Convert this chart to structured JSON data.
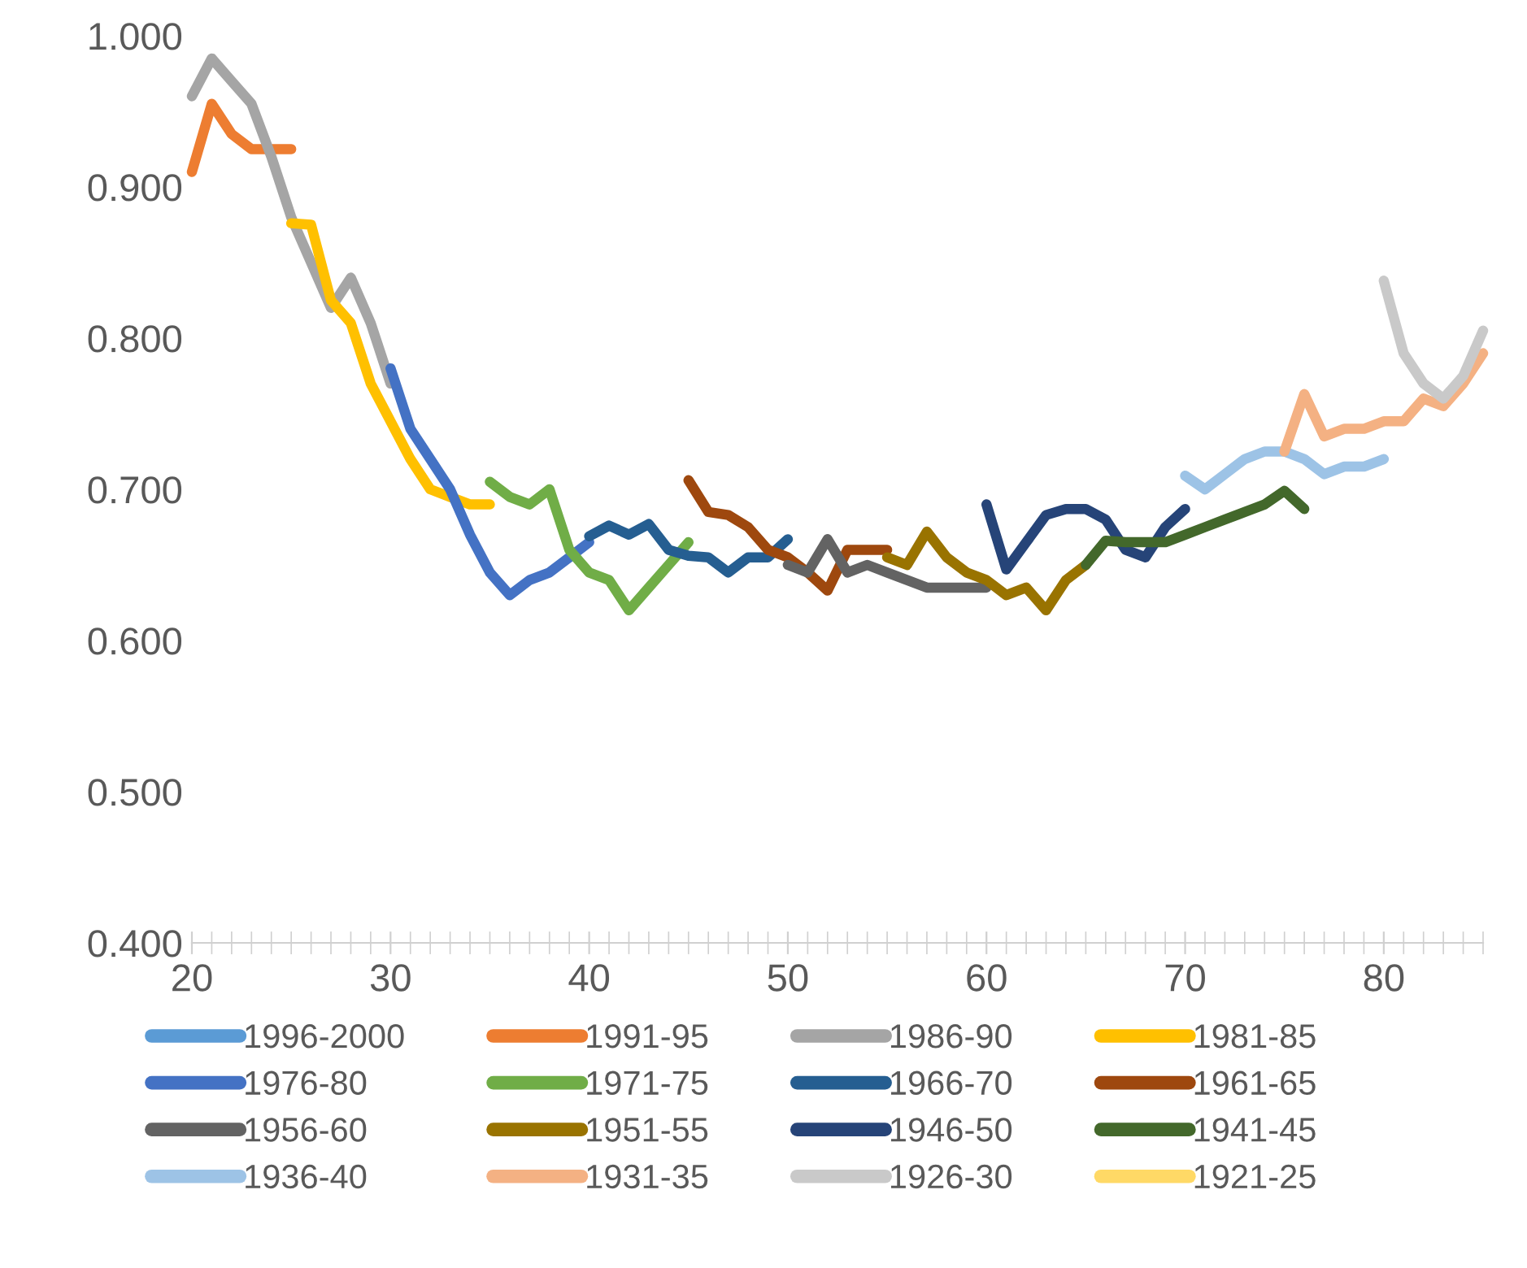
{
  "chart_data": {
    "type": "line",
    "xlim": [
      20,
      85
    ],
    "xticks": [
      20,
      30,
      40,
      50,
      60,
      70,
      80
    ],
    "ylim": [
      0.4,
      1.0
    ],
    "yticks": [
      {
        "value": 0.4,
        "label": "0.400"
      },
      {
        "value": 0.5,
        "label": "0.500"
      },
      {
        "value": 0.6,
        "label": "0.600"
      },
      {
        "value": 0.7,
        "label": "0.700"
      },
      {
        "value": 0.8,
        "label": "0.800"
      },
      {
        "value": 0.9,
        "label": "0.900"
      },
      {
        "value": 1.0,
        "label": "1.000"
      }
    ],
    "grid": false,
    "legend": "bottom",
    "line_style": "solid",
    "marker": "none",
    "series": [
      {
        "name": "1996-2000",
        "color": "#5b9bd5"
      },
      {
        "name": "1991-95",
        "color": "#ed7d31",
        "x": [
          20,
          21,
          22,
          23,
          24,
          25
        ],
        "values": [
          0.91,
          0.955,
          0.935,
          0.925,
          0.925,
          0.925
        ]
      },
      {
        "name": "1986-90",
        "color": "#a5a5a5",
        "x": [
          20,
          21,
          22,
          23,
          24,
          25,
          26,
          27,
          28,
          29,
          30
        ],
        "values": [
          0.96,
          0.985,
          0.97,
          0.955,
          0.92,
          0.88,
          0.85,
          0.82,
          0.84,
          0.81,
          0.77
        ]
      },
      {
        "name": "1981-85",
        "color": "#ffc000",
        "x": [
          25,
          26,
          27,
          28,
          29,
          30,
          31,
          32,
          33,
          34,
          35
        ],
        "values": [
          0.876,
          0.875,
          0.825,
          0.81,
          0.77,
          0.745,
          0.72,
          0.7,
          0.695,
          0.69,
          0.69
        ]
      },
      {
        "name": "1976-80",
        "color": "#4472c4",
        "x": [
          30,
          31,
          32,
          33,
          34,
          35,
          36,
          37,
          38,
          39,
          40
        ],
        "values": [
          0.78,
          0.74,
          0.72,
          0.7,
          0.67,
          0.645,
          0.63,
          0.64,
          0.645,
          0.655,
          0.665
        ]
      },
      {
        "name": "1971-75",
        "color": "#70ad47",
        "x": [
          35,
          36,
          37,
          38,
          39,
          40,
          41,
          42,
          43,
          44,
          45
        ],
        "values": [
          0.705,
          0.695,
          0.69,
          0.7,
          0.66,
          0.645,
          0.64,
          0.62,
          0.635,
          0.65,
          0.665
        ]
      },
      {
        "name": "1966-70",
        "color": "#255e91",
        "x": [
          40,
          41,
          42,
          43,
          44,
          45,
          46,
          47,
          48,
          49,
          50
        ],
        "values": [
          0.669,
          0.676,
          0.67,
          0.677,
          0.66,
          0.656,
          0.655,
          0.645,
          0.655,
          0.655,
          0.667
        ]
      },
      {
        "name": "1961-65",
        "color": "#9e480e",
        "x": [
          45,
          46,
          47,
          48,
          49,
          50,
          51,
          52,
          53,
          54,
          55
        ],
        "values": [
          0.706,
          0.685,
          0.683,
          0.675,
          0.66,
          0.655,
          0.645,
          0.633,
          0.66,
          0.66,
          0.66
        ]
      },
      {
        "name": "1956-60",
        "color": "#636363",
        "x": [
          50,
          51,
          52,
          53,
          54,
          55,
          56,
          57,
          58,
          59,
          60
        ],
        "values": [
          0.65,
          0.645,
          0.667,
          0.645,
          0.65,
          0.645,
          0.64,
          0.635,
          0.635,
          0.635,
          0.635
        ]
      },
      {
        "name": "1951-55",
        "color": "#997300",
        "x": [
          55,
          56,
          57,
          58,
          59,
          60,
          61,
          62,
          63,
          64,
          65
        ],
        "values": [
          0.655,
          0.65,
          0.672,
          0.655,
          0.645,
          0.64,
          0.63,
          0.635,
          0.62,
          0.64,
          0.65
        ]
      },
      {
        "name": "1946-50",
        "color": "#264478",
        "x": [
          60,
          61,
          62,
          63,
          64,
          65,
          66,
          67,
          68,
          69,
          70
        ],
        "values": [
          0.69,
          0.647,
          0.665,
          0.683,
          0.687,
          0.687,
          0.68,
          0.66,
          0.655,
          0.675,
          0.687
        ]
      },
      {
        "name": "1941-45",
        "color": "#43682b",
        "x": [
          65,
          66,
          67,
          68,
          69,
          70,
          71,
          72,
          73,
          74,
          75,
          76
        ],
        "values": [
          0.65,
          0.666,
          0.665,
          0.665,
          0.665,
          0.67,
          0.675,
          0.68,
          0.685,
          0.69,
          0.699,
          0.687
        ]
      },
      {
        "name": "1936-40",
        "color": "#9dc3e6",
        "x": [
          70,
          71,
          72,
          73,
          74,
          75,
          76,
          77,
          78,
          79,
          80
        ],
        "values": [
          0.709,
          0.7,
          0.71,
          0.72,
          0.725,
          0.725,
          0.72,
          0.71,
          0.715,
          0.715,
          0.72
        ]
      },
      {
        "name": "1931-35",
        "color": "#f4b183",
        "x": [
          75,
          76,
          77,
          78,
          79,
          80,
          81,
          82,
          83,
          84,
          85
        ],
        "values": [
          0.725,
          0.763,
          0.735,
          0.74,
          0.74,
          0.745,
          0.745,
          0.76,
          0.755,
          0.77,
          0.79
        ]
      },
      {
        "name": "1926-30",
        "color": "#c9c9c9",
        "x": [
          80,
          81,
          82,
          83,
          84,
          85
        ],
        "values": [
          0.838,
          0.79,
          0.77,
          0.76,
          0.775,
          0.805
        ]
      },
      {
        "name": "1921-25",
        "color": "#ffd966"
      }
    ]
  }
}
